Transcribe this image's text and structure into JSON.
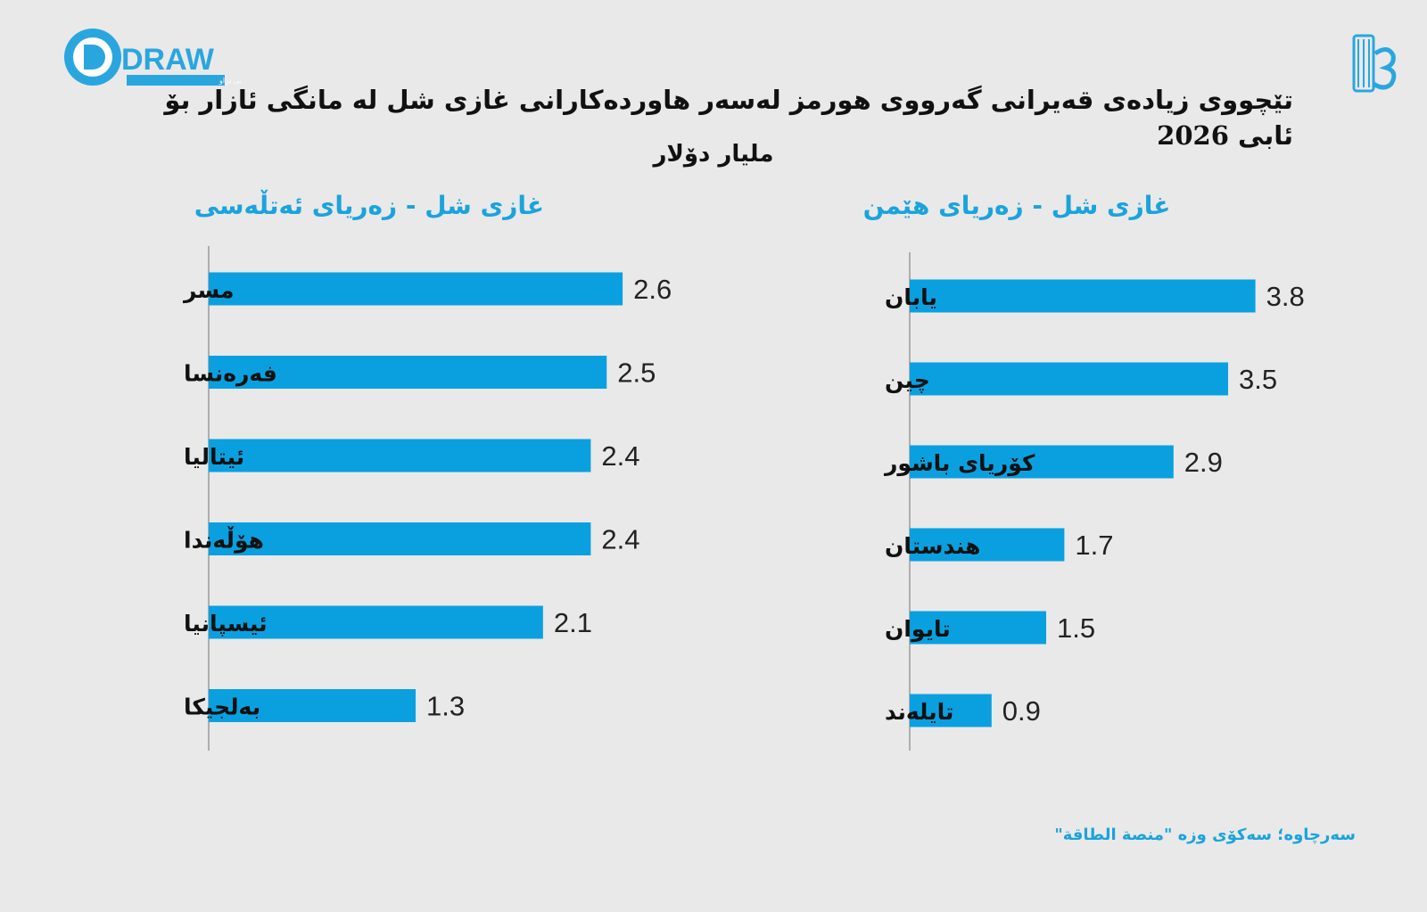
{
  "header": {
    "logo_text": "DRAW",
    "logo_tagline": "دامەزراوەی میدیایی دراو",
    "title_line1": "تێچووی زیادەی قەیرانی گەرووی هورمز لەسەر هاوردەکارانی غازی شل لە مانگی ئازار بۆ ئابی",
    "title_year": "2026",
    "subtitle": "ملیار دۆلار"
  },
  "colors": {
    "bar": "#0aa0e0",
    "accent": "#1ba3dc",
    "axis": "#9a9a9a",
    "background": "#e9e9e9"
  },
  "chart_data": [
    {
      "type": "bar",
      "orientation": "horizontal",
      "title": "غازی شل - زەریای ئەتڵەسی",
      "categories": [
        "مسر",
        "فەرەنسا",
        "ئیتاليا",
        "هۆڵەندا",
        "ئیسپانیا",
        "بەلجیکا"
      ],
      "values": [
        2.6,
        2.5,
        2.4,
        2.4,
        2.1,
        1.3
      ],
      "xlim": [
        0,
        3.8
      ],
      "grid": false
    },
    {
      "type": "bar",
      "orientation": "horizontal",
      "title": "غازی شل - زەریای هێمن",
      "categories": [
        "یابان",
        "چین",
        "کۆریای باشور",
        "هندستان",
        "تایوان",
        "تایلەند"
      ],
      "values": [
        3.8,
        3.5,
        2.9,
        1.7,
        1.5,
        0.9
      ],
      "xlim": [
        0,
        3.8
      ],
      "grid": false
    }
  ],
  "source": "سەرچاوە؛ سەکۆی وزە \"منصة الطاقة\""
}
